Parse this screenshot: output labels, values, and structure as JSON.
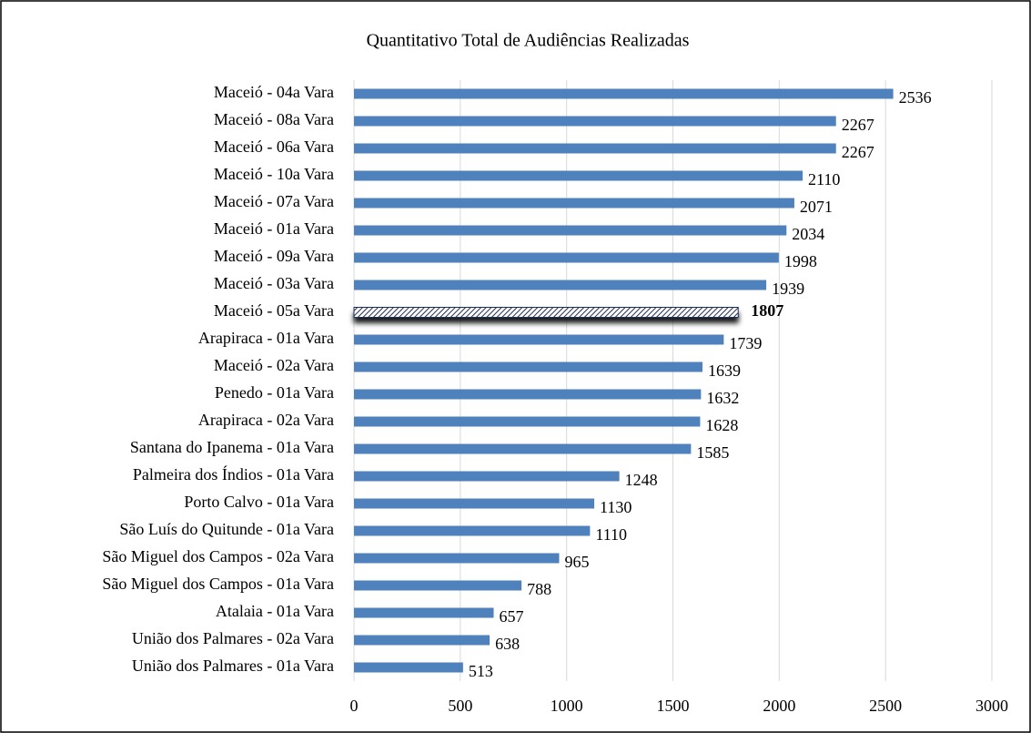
{
  "chart_data": {
    "type": "bar",
    "orientation": "horizontal",
    "title": "Quantitativo Total de Audiências Realizadas",
    "categories": [
      "Maceió - 04a Vara",
      "Maceió - 08a Vara",
      "Maceió - 06a Vara",
      "Maceió - 10a Vara",
      "Maceió - 07a Vara",
      "Maceió - 01a Vara",
      "Maceió - 09a Vara",
      "Maceió - 03a Vara",
      "Maceió - 05a Vara",
      "Arapiraca - 01a Vara",
      "Maceió - 02a Vara",
      "Penedo - 01a Vara",
      "Arapiraca - 02a Vara",
      "Santana do Ipanema - 01a Vara",
      "Palmeira dos Índios - 01a Vara",
      "Porto Calvo - 01a Vara",
      "São Luís do Quitunde - 01a Vara",
      "São Miguel dos Campos - 02a Vara",
      "São Miguel dos Campos - 01a Vara",
      "Atalaia - 01a Vara",
      "União dos Palmares - 02a Vara",
      "União dos Palmares - 01a Vara"
    ],
    "values": [
      2536,
      2267,
      2267,
      2110,
      2071,
      2034,
      1998,
      1939,
      1807,
      1739,
      1639,
      1632,
      1628,
      1585,
      1248,
      1130,
      1110,
      965,
      788,
      657,
      638,
      513
    ],
    "color": "#4f81bd",
    "highlight": 8,
    "xlim": [
      0,
      3000
    ],
    "xticks": [
      0,
      500,
      1000,
      1500,
      2000,
      2500,
      3000
    ],
    "grid": true
  }
}
